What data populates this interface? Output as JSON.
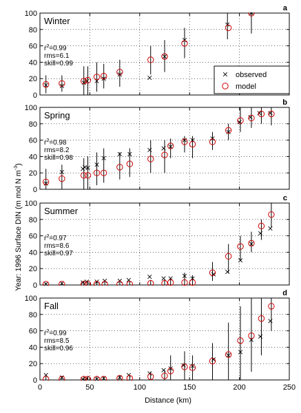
{
  "figure": {
    "ylabel_prefix": "Year: 1996",
    "ylabel_main": "Surface DIN (m mol N m",
    "ylabel_sup": "-3",
    "ylabel_end": ")",
    "xlabel": "Distance (km)",
    "legend": {
      "observed": "observed",
      "model": "model"
    }
  },
  "chart_data": [
    {
      "type": "scatter",
      "title": "Winter",
      "letter": "a",
      "stats": {
        "r2": "=0.99",
        "rms": "rms=6.1",
        "skill": "skill=0.99"
      },
      "xlim": [
        0,
        250
      ],
      "ylim": [
        0,
        100
      ],
      "xticks": [
        0,
        50,
        100,
        150,
        200,
        250
      ],
      "yticks": [
        0,
        20,
        40,
        60,
        80,
        100
      ],
      "grid": true,
      "legend_position": "bottom-right",
      "observed": [
        [
          6,
          12
        ],
        [
          22,
          11
        ],
        [
          44,
          15
        ],
        [
          47,
          17
        ],
        [
          57,
          17
        ],
        [
          64,
          20
        ],
        [
          80,
          25
        ],
        [
          110,
          21
        ],
        [
          125,
          47
        ],
        [
          145,
          67
        ],
        [
          188,
          86
        ],
        [
          212,
          100
        ]
      ],
      "model": [
        [
          6,
          13
        ],
        [
          22,
          14
        ],
        [
          44,
          17
        ],
        [
          48,
          18
        ],
        [
          57,
          22
        ],
        [
          64,
          23
        ],
        [
          80,
          28
        ],
        [
          111,
          43
        ],
        [
          125,
          47
        ],
        [
          145,
          63
        ],
        [
          189,
          82
        ],
        [
          212,
          100
        ]
      ],
      "errorbars": [
        [
          6,
          2,
          24
        ],
        [
          22,
          4,
          24
        ],
        [
          44,
          0,
          35
        ],
        [
          48,
          0,
          35
        ],
        [
          57,
          4,
          40
        ],
        [
          64,
          8,
          38
        ],
        [
          80,
          10,
          43
        ],
        [
          111,
          25,
          60
        ],
        [
          125,
          28,
          67
        ],
        [
          145,
          45,
          82
        ],
        [
          188,
          68,
          100
        ],
        [
          212,
          75,
          100
        ]
      ]
    },
    {
      "type": "scatter",
      "title": "Spring",
      "letter": "b",
      "stats": {
        "r2": "=0.98",
        "rms": "rms=8.2",
        "skill": "skill=0.98"
      },
      "xlim": [
        0,
        250
      ],
      "ylim": [
        0,
        100
      ],
      "xticks": [
        0,
        50,
        100,
        150,
        200,
        250
      ],
      "yticks": [
        0,
        20,
        40,
        60,
        80,
        100
      ],
      "grid": true,
      "observed": [
        [
          6,
          7
        ],
        [
          22,
          21
        ],
        [
          43,
          25
        ],
        [
          45,
          27
        ],
        [
          48,
          26
        ],
        [
          57,
          30
        ],
        [
          64,
          38
        ],
        [
          80,
          43
        ],
        [
          90,
          43
        ],
        [
          110,
          48
        ],
        [
          124,
          50
        ],
        [
          131,
          52
        ],
        [
          145,
          60
        ],
        [
          153,
          60
        ],
        [
          173,
          62
        ],
        [
          189,
          70
        ],
        [
          200,
          82
        ],
        [
          211,
          88
        ],
        [
          220,
          93
        ],
        [
          231,
          93
        ]
      ],
      "model": [
        [
          6,
          9
        ],
        [
          22,
          13
        ],
        [
          44,
          17
        ],
        [
          48,
          17
        ],
        [
          57,
          20
        ],
        [
          64,
          20
        ],
        [
          80,
          27
        ],
        [
          90,
          31
        ],
        [
          111,
          37
        ],
        [
          125,
          42
        ],
        [
          131,
          53
        ],
        [
          145,
          58
        ],
        [
          153,
          55
        ],
        [
          173,
          58
        ],
        [
          189,
          72
        ],
        [
          201,
          84
        ],
        [
          212,
          87
        ],
        [
          222,
          92
        ],
        [
          232,
          92
        ]
      ],
      "errorbars": [
        [
          6,
          0,
          25
        ],
        [
          22,
          0,
          30
        ],
        [
          44,
          0,
          38
        ],
        [
          48,
          0,
          40
        ],
        [
          57,
          5,
          45
        ],
        [
          64,
          8,
          50
        ],
        [
          80,
          12,
          45
        ],
        [
          90,
          15,
          50
        ],
        [
          111,
          20,
          60
        ],
        [
          125,
          20,
          60
        ],
        [
          131,
          38,
          62
        ],
        [
          145,
          45,
          65
        ],
        [
          153,
          38,
          65
        ],
        [
          173,
          48,
          70
        ],
        [
          189,
          60,
          80
        ],
        [
          201,
          70,
          100
        ],
        [
          212,
          75,
          100
        ],
        [
          222,
          80,
          100
        ],
        [
          232,
          78,
          100
        ]
      ]
    },
    {
      "type": "scatter",
      "title": "Summer",
      "letter": "c",
      "stats": {
        "r2": "=0.97",
        "rms": "rms=8.6",
        "skill": "skill=0.97"
      },
      "xlim": [
        0,
        250
      ],
      "ylim": [
        0,
        100
      ],
      "xticks": [
        0,
        50,
        100,
        150,
        200,
        250
      ],
      "yticks": [
        0,
        20,
        40,
        60,
        80,
        100
      ],
      "grid": true,
      "observed": [
        [
          6,
          1
        ],
        [
          22,
          2
        ],
        [
          43,
          3
        ],
        [
          47,
          4
        ],
        [
          57,
          4
        ],
        [
          65,
          5
        ],
        [
          80,
          5
        ],
        [
          89,
          6
        ],
        [
          110,
          10
        ],
        [
          124,
          8
        ],
        [
          131,
          8
        ],
        [
          145,
          11
        ],
        [
          153,
          8
        ],
        [
          174,
          13
        ],
        [
          188,
          16
        ],
        [
          201,
          30
        ],
        [
          212,
          50
        ],
        [
          221,
          63
        ],
        [
          231,
          69
        ]
      ],
      "model": [
        [
          6,
          1
        ],
        [
          22,
          1
        ],
        [
          44,
          1
        ],
        [
          48,
          1
        ],
        [
          57,
          1
        ],
        [
          65,
          1
        ],
        [
          80,
          1
        ],
        [
          90,
          1
        ],
        [
          111,
          2
        ],
        [
          125,
          2
        ],
        [
          131,
          3
        ],
        [
          145,
          3
        ],
        [
          153,
          3
        ],
        [
          173,
          15
        ],
        [
          189,
          35
        ],
        [
          201,
          47
        ],
        [
          212,
          51
        ],
        [
          222,
          72
        ],
        [
          232,
          86
        ]
      ],
      "errorbars": [
        [
          6,
          0,
          3
        ],
        [
          22,
          0,
          3
        ],
        [
          44,
          0,
          5
        ],
        [
          48,
          0,
          5
        ],
        [
          57,
          0,
          5
        ],
        [
          65,
          0,
          5
        ],
        [
          80,
          0,
          5
        ],
        [
          90,
          0,
          5
        ],
        [
          111,
          0,
          6
        ],
        [
          125,
          0,
          7
        ],
        [
          131,
          0,
          8
        ],
        [
          145,
          0,
          15
        ],
        [
          153,
          0,
          12
        ],
        [
          173,
          5,
          28
        ],
        [
          189,
          15,
          50
        ],
        [
          201,
          30,
          60
        ],
        [
          212,
          40,
          65
        ],
        [
          222,
          55,
          80
        ],
        [
          232,
          70,
          100
        ]
      ]
    },
    {
      "type": "scatter",
      "title": "Fall",
      "letter": "d",
      "stats": {
        "r2": "=0.99",
        "rms": "rms=8.5",
        "skill": "skill=0.96"
      },
      "xlim": [
        0,
        250
      ],
      "ylim": [
        0,
        100
      ],
      "xticks": [
        0,
        50,
        100,
        150,
        200,
        250
      ],
      "yticks": [
        0,
        20,
        40,
        60,
        80,
        100
      ],
      "grid": true,
      "observed": [
        [
          6,
          6
        ],
        [
          22,
          3
        ],
        [
          43,
          1
        ],
        [
          47,
          2
        ],
        [
          57,
          1
        ],
        [
          64,
          2
        ],
        [
          80,
          3
        ],
        [
          89,
          6
        ],
        [
          110,
          8
        ],
        [
          124,
          12
        ],
        [
          131,
          14
        ],
        [
          144,
          18
        ],
        [
          153,
          17
        ],
        [
          174,
          25
        ],
        [
          189,
          30
        ],
        [
          201,
          34
        ],
        [
          212,
          49
        ],
        [
          221,
          53
        ],
        [
          231,
          72
        ]
      ],
      "model": [
        [
          6,
          1
        ],
        [
          22,
          1
        ],
        [
          44,
          1
        ],
        [
          48,
          1
        ],
        [
          57,
          1
        ],
        [
          64,
          1
        ],
        [
          80,
          2
        ],
        [
          90,
          2
        ],
        [
          111,
          4
        ],
        [
          125,
          5
        ],
        [
          131,
          11
        ],
        [
          145,
          16
        ],
        [
          153,
          15
        ],
        [
          173,
          23
        ],
        [
          189,
          31
        ],
        [
          201,
          48
        ],
        [
          212,
          54
        ],
        [
          222,
          75
        ],
        [
          232,
          90
        ]
      ],
      "errorbars": [
        [
          6,
          0,
          4
        ],
        [
          22,
          0,
          5
        ],
        [
          44,
          0,
          4
        ],
        [
          48,
          0,
          4
        ],
        [
          57,
          0,
          4
        ],
        [
          64,
          0,
          4
        ],
        [
          80,
          0,
          6
        ],
        [
          90,
          0,
          6
        ],
        [
          111,
          0,
          10
        ],
        [
          125,
          0,
          12
        ],
        [
          131,
          0,
          30
        ],
        [
          145,
          0,
          35
        ],
        [
          153,
          0,
          30
        ],
        [
          173,
          0,
          45
        ],
        [
          189,
          0,
          70
        ],
        [
          201,
          0,
          90
        ],
        [
          212,
          10,
          100
        ],
        [
          222,
          30,
          100
        ],
        [
          232,
          60,
          100
        ]
      ]
    }
  ]
}
